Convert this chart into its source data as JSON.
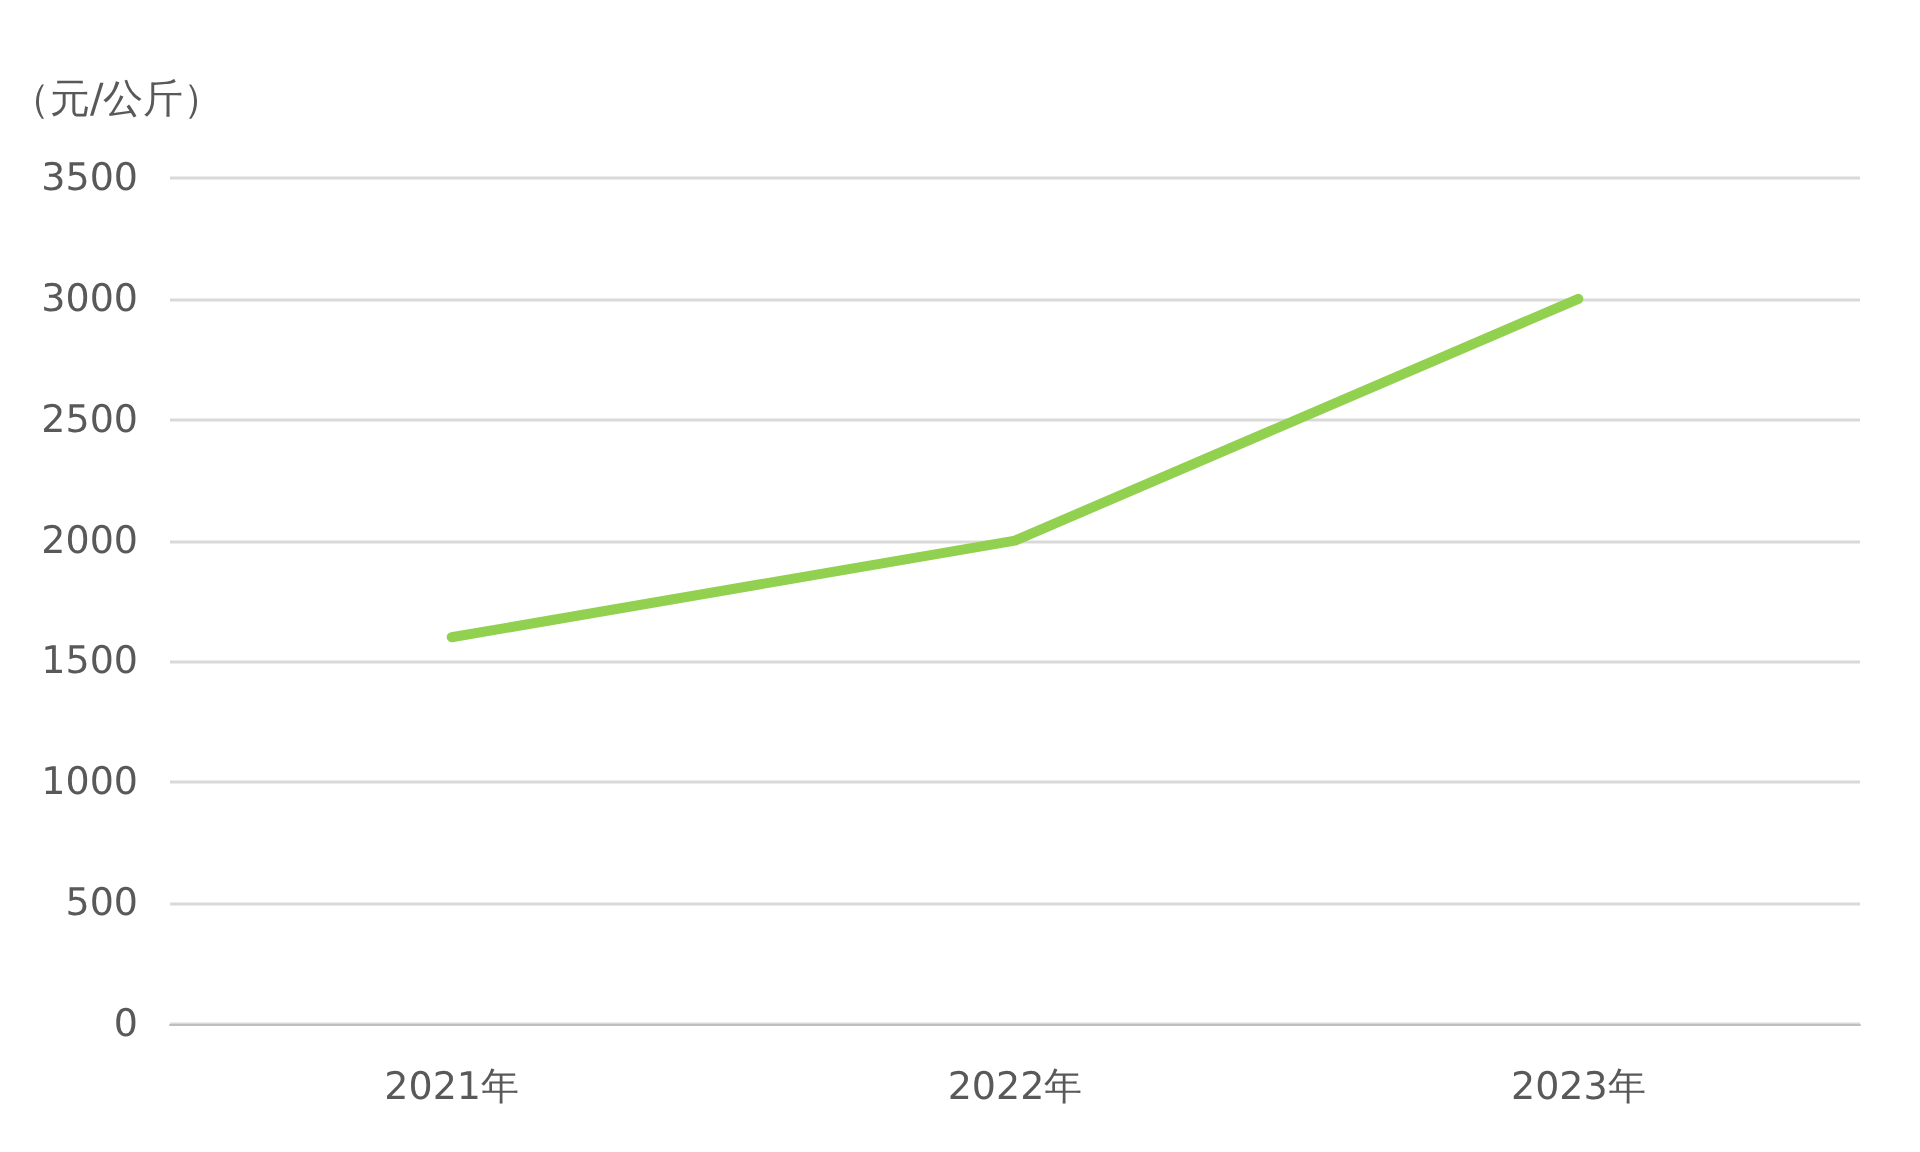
{
  "chart_data": {
    "type": "line",
    "ylabel": "（元/公斤）",
    "categories": [
      "2021年",
      "2022年",
      "2023年"
    ],
    "series": [
      {
        "color": "#92d050",
        "values": [
          1600,
          2000,
          3000
        ]
      }
    ],
    "ylim": [
      0,
      3500
    ],
    "yticks": [
      0,
      500,
      1000,
      1500,
      2000,
      2500,
      3000,
      3500
    ],
    "grid": "y",
    "marker": "none",
    "line_style": "solid"
  }
}
